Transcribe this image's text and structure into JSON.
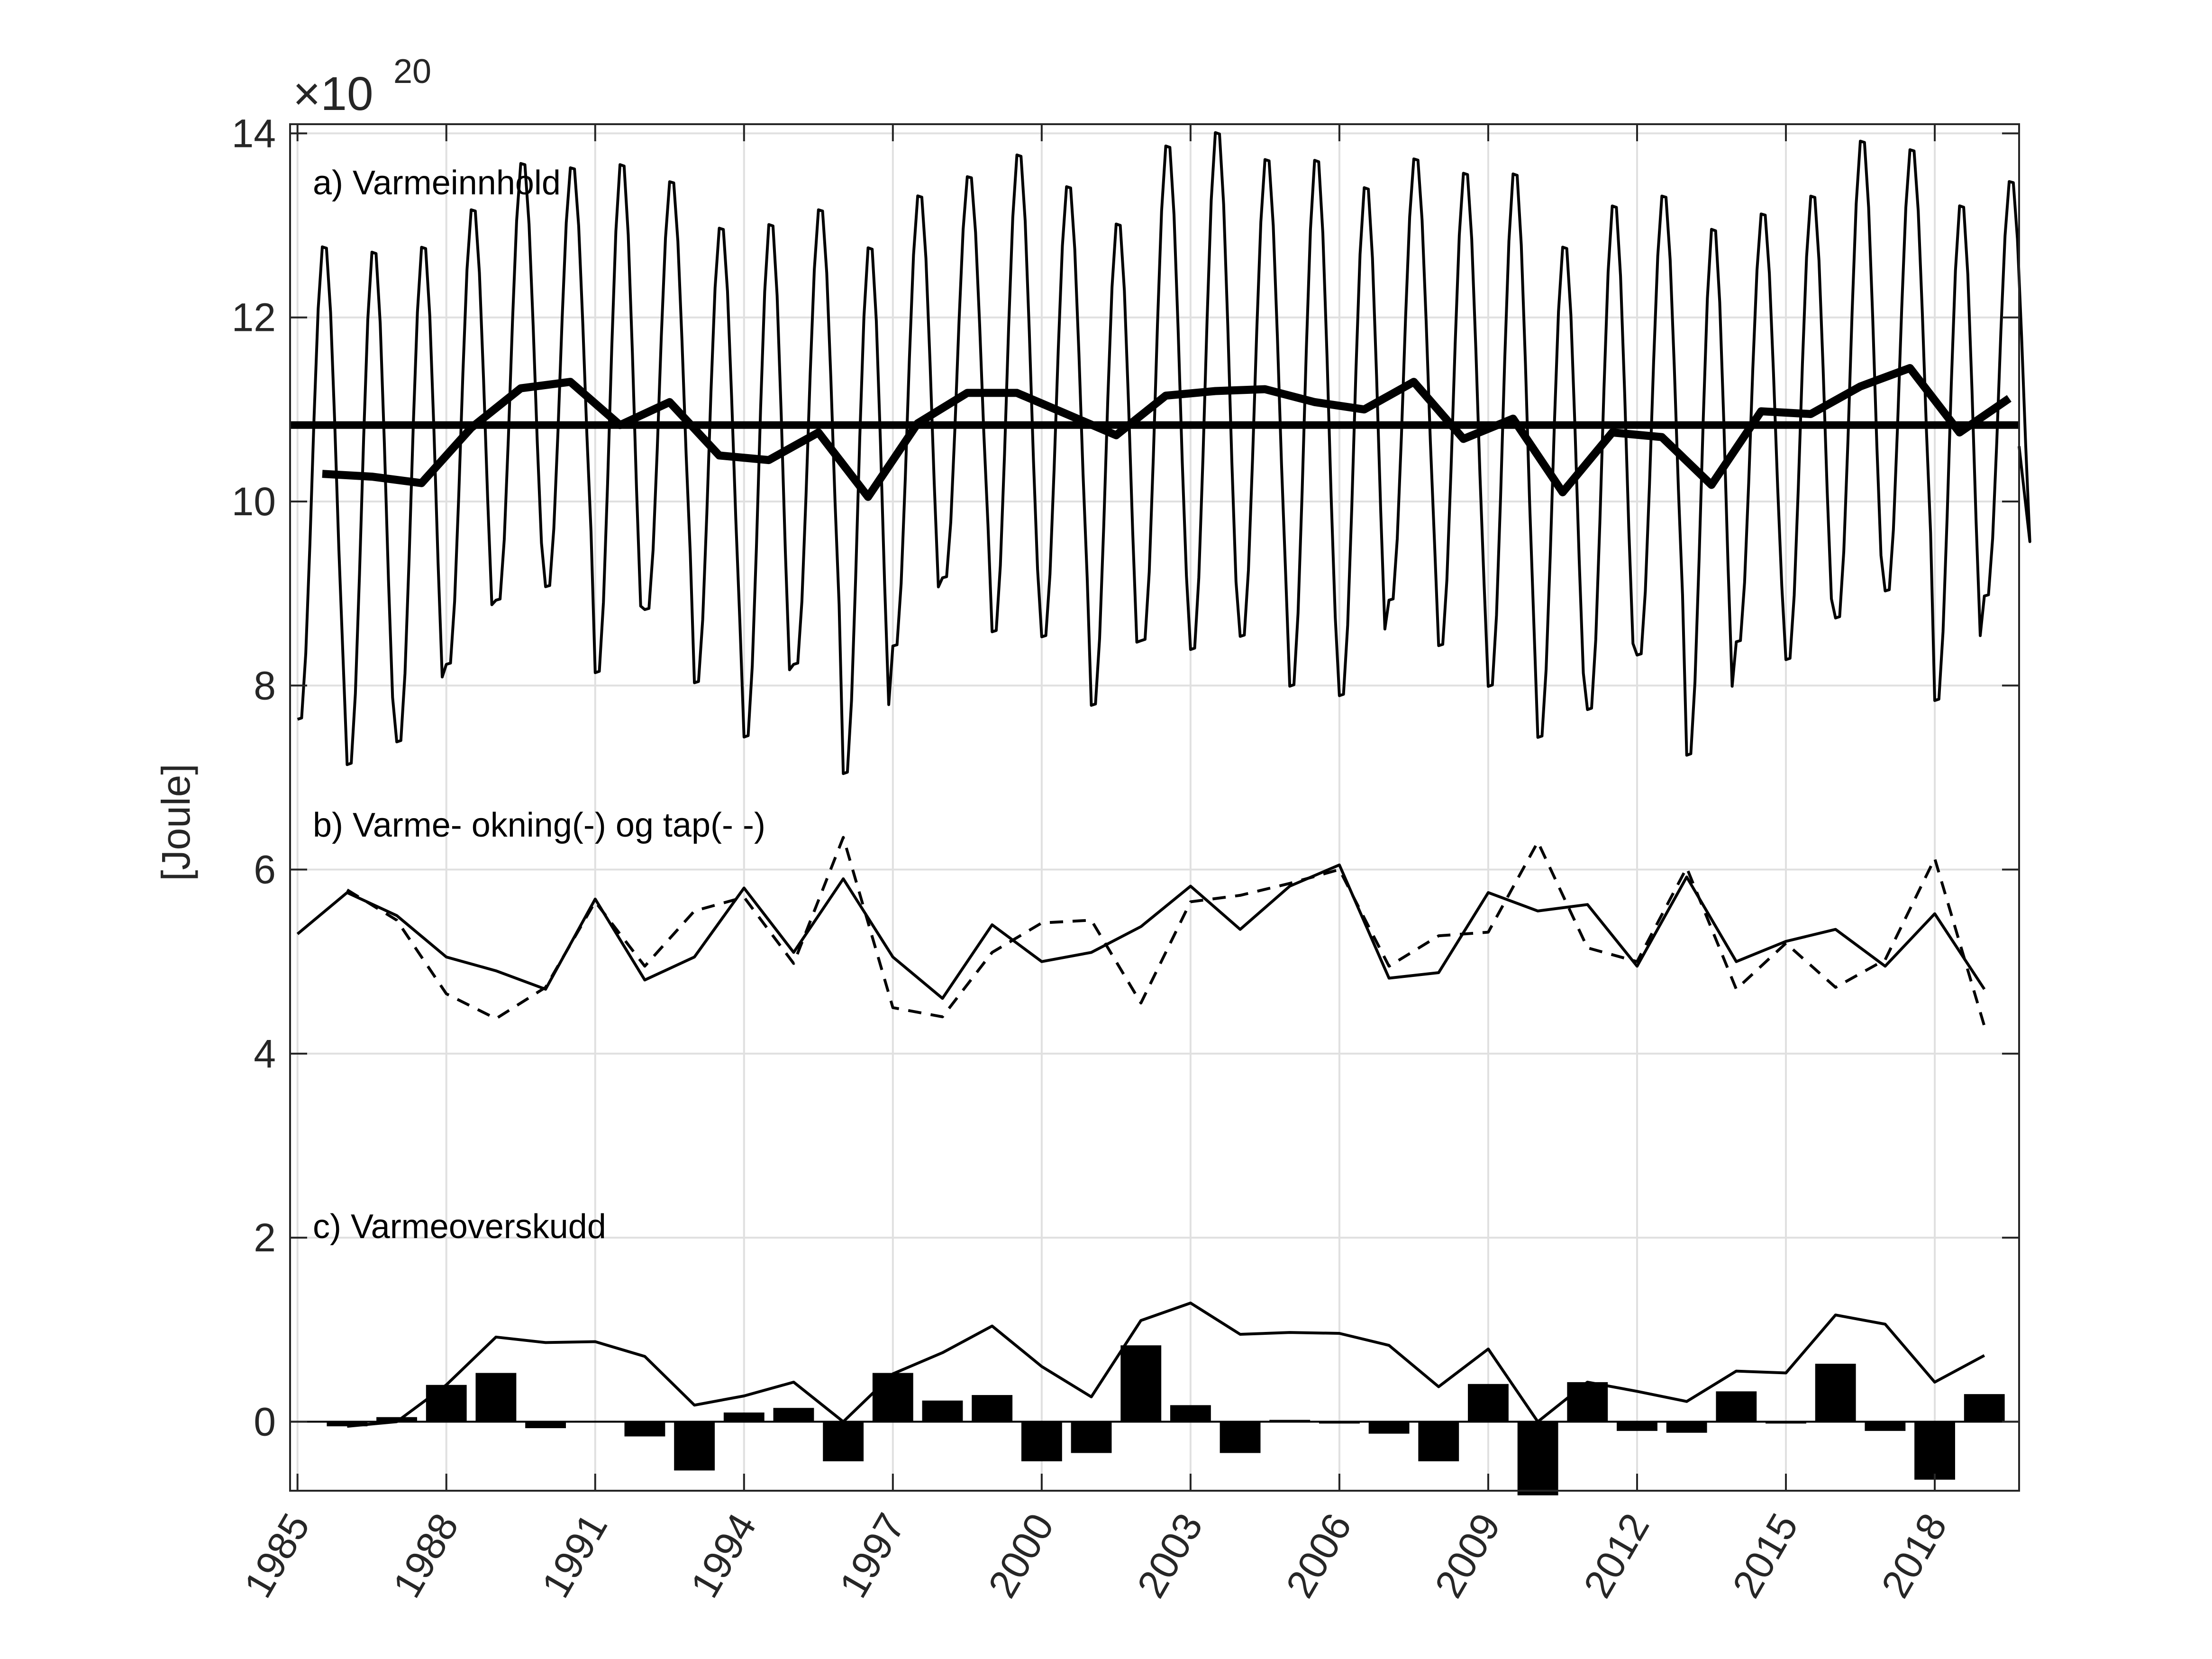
{
  "chart_data": {
    "type": "line",
    "ylabel": "[Joule]",
    "y_exponent": {
      "base": "10",
      "power": "20"
    },
    "ylim": [
      -0.75,
      14.1
    ],
    "xlim": [
      1984.85,
      2019.7
    ],
    "yticks": [
      "0",
      "2",
      "4",
      "6",
      "8",
      "10",
      "12",
      "14"
    ],
    "ytick_values": [
      0,
      2,
      4,
      6,
      8,
      10,
      12,
      14
    ],
    "xticks": [
      "1985",
      "1988",
      "1991",
      "1994",
      "1997",
      "2000",
      "2003",
      "2006",
      "2009",
      "2012",
      "2015",
      "2018"
    ],
    "xtick_values": [
      1985,
      1988,
      1991,
      1994,
      1997,
      2000,
      2003,
      2006,
      2009,
      2012,
      2015,
      2018
    ],
    "grid": true,
    "panel_labels": {
      "a": "a) Varmeinnhold",
      "b": "b) Varme- okning(-) og tap(- -)",
      "c": "c) Varmeoverskudd"
    },
    "annual_years": [
      1985,
      1986,
      1987,
      1988,
      1989,
      1990,
      1991,
      1992,
      1993,
      1994,
      1995,
      1996,
      1997,
      1998,
      1999,
      2000,
      2001,
      2002,
      2003,
      2004,
      2005,
      2006,
      2007,
      2008,
      2009,
      2010,
      2011,
      2012,
      2013,
      2014,
      2015,
      2016,
      2017,
      2018,
      2019
    ],
    "seasonal_cycle": {
      "max": [
        12.85,
        12.8,
        12.85,
        13.25,
        13.75,
        13.7,
        13.75,
        13.55,
        13.05,
        13.1,
        13.25,
        12.85,
        13.4,
        13.6,
        13.85,
        13.5,
        13.1,
        13.95,
        14.1,
        13.8,
        13.8,
        13.5,
        13.8,
        13.65,
        13.65,
        12.85,
        13.3,
        13.4,
        13.05,
        13.2,
        13.4,
        14.0,
        13.9,
        13.3,
        13.55
      ],
      "min": [
        7.55,
        7.05,
        7.3,
        8.15,
        8.85,
        9.0,
        8.05,
        8.75,
        7.95,
        7.35,
        8.15,
        6.95,
        8.35,
        9.1,
        8.5,
        8.45,
        7.7,
        8.4,
        8.3,
        8.45,
        7.9,
        7.8,
        8.85,
        8.35,
        7.9,
        7.35,
        7.65,
        8.25,
        7.15,
        8.4,
        8.2,
        8.65,
        8.95,
        7.75,
        8.9
      ]
    },
    "series": [
      {
        "key": "annual_mean",
        "x": [
          1985.5,
          1986.5,
          1987.5,
          1988.5,
          1989.5,
          1990.5,
          1991.5,
          1992.5,
          1993.5,
          1994.5,
          1995.5,
          1996.5,
          1997.5,
          1998.5,
          1999.5,
          2000.5,
          2001.5,
          2002.5,
          2003.5,
          2004.5,
          2005.5,
          2006.5,
          2007.5,
          2008.5,
          2009.5,
          2010.5,
          2011.5,
          2012.5,
          2013.5,
          2014.5,
          2015.5,
          2016.5,
          2017.5,
          2018.5,
          2019.5
        ],
        "values": [
          10.3,
          10.27,
          10.2,
          10.8,
          11.23,
          11.3,
          10.83,
          11.08,
          10.5,
          10.45,
          10.75,
          10.05,
          10.85,
          11.18,
          11.18,
          10.95,
          10.72,
          11.15,
          11.2,
          11.22,
          11.08,
          11.0,
          11.3,
          10.68,
          10.9,
          10.1,
          10.75,
          10.7,
          10.18,
          10.98,
          10.95,
          11.25,
          11.45,
          10.75,
          11.12
        ]
      },
      {
        "key": "long_term_mean",
        "x": [
          1984.85,
          2019.7
        ],
        "values": [
          10.83,
          10.83
        ]
      },
      {
        "key": "heat_gain",
        "x": [
          1985,
          1986,
          1987,
          1988,
          1989,
          1990,
          1991,
          1992,
          1993,
          1994,
          1995,
          1996,
          1997,
          1998,
          1999,
          2000,
          2001,
          2002,
          2003,
          2004,
          2005,
          2006,
          2007,
          2008,
          2009,
          2010,
          2011,
          2012,
          2013,
          2014,
          2015,
          2016,
          2017,
          2018,
          2019
        ],
        "values": [
          5.3,
          5.75,
          5.5,
          5.05,
          4.9,
          4.7,
          5.68,
          4.8,
          5.05,
          5.8,
          5.1,
          5.9,
          5.05,
          4.6,
          5.4,
          5.0,
          5.1,
          5.38,
          5.82,
          5.35,
          5.82,
          6.05,
          4.82,
          4.88,
          5.75,
          5.55,
          5.62,
          4.95,
          5.92,
          5.0,
          5.22,
          5.35,
          4.95,
          5.52,
          4.7
        ]
      },
      {
        "key": "heat_loss",
        "x": [
          1986,
          1987,
          1988,
          1989,
          1990,
          1991,
          1992,
          1993,
          1994,
          1995,
          1996,
          1997,
          1998,
          1999,
          2000,
          2001,
          2002,
          2003,
          2004,
          2005,
          2006,
          2007,
          2008,
          2009,
          2010,
          2011,
          2012,
          2013,
          2014,
          2015,
          2016,
          2017,
          2018,
          2019
        ],
        "values": [
          5.78,
          5.45,
          4.65,
          4.38,
          4.72,
          5.65,
          4.95,
          5.55,
          5.7,
          4.98,
          6.35,
          4.5,
          4.4,
          5.1,
          5.42,
          5.45,
          4.55,
          5.65,
          5.72,
          5.85,
          6.0,
          4.95,
          5.28,
          5.32,
          6.3,
          5.15,
          5.0,
          6.02,
          4.7,
          5.2,
          4.72,
          5.02,
          6.12,
          4.3
        ]
      },
      {
        "key": "cumulative_excess",
        "x": [
          1986,
          1987,
          1988,
          1989,
          1990,
          1991,
          1992,
          1993,
          1994,
          1995,
          1996,
          1997,
          1998,
          1999,
          2000,
          2001,
          2002,
          2003,
          2004,
          2005,
          2006,
          2007,
          2008,
          2009,
          2010,
          2011,
          2012,
          2013,
          2014,
          2015,
          2016,
          2017,
          2018,
          2019
        ],
        "values": [
          -0.05,
          0.0,
          0.4,
          0.92,
          0.86,
          0.87,
          0.71,
          0.18,
          0.28,
          0.43,
          0.0,
          0.52,
          0.75,
          1.04,
          0.6,
          0.27,
          1.1,
          1.29,
          0.95,
          0.97,
          0.96,
          0.83,
          0.38,
          0.79,
          0.0,
          0.43,
          0.33,
          0.22,
          0.55,
          0.53,
          1.16,
          1.06,
          0.43,
          0.72
        ]
      }
    ],
    "bars": {
      "key": "annual_excess",
      "x": [
        1986,
        1987,
        1988,
        1989,
        1990,
        1991,
        1992,
        1993,
        1994,
        1995,
        1996,
        1997,
        1998,
        1999,
        2000,
        2001,
        2002,
        2003,
        2004,
        2005,
        2006,
        2007,
        2008,
        2009,
        2010,
        2011,
        2012,
        2013,
        2014,
        2015,
        2016,
        2017,
        2018,
        2019
      ],
      "values": [
        -0.05,
        0.05,
        0.4,
        0.53,
        -0.07,
        0.01,
        -0.16,
        -0.53,
        0.1,
        0.15,
        -0.43,
        0.53,
        0.23,
        0.29,
        -0.43,
        -0.34,
        0.83,
        0.18,
        -0.34,
        0.02,
        -0.02,
        -0.13,
        -0.43,
        0.41,
        -0.8,
        0.43,
        -0.1,
        -0.12,
        0.33,
        -0.02,
        0.63,
        -0.1,
        -0.63,
        0.3
      ]
    }
  },
  "style": {
    "line_color": "#000000",
    "axis_color": "#262626",
    "grid_color": "#e0e0e0",
    "background": "#ffffff"
  }
}
